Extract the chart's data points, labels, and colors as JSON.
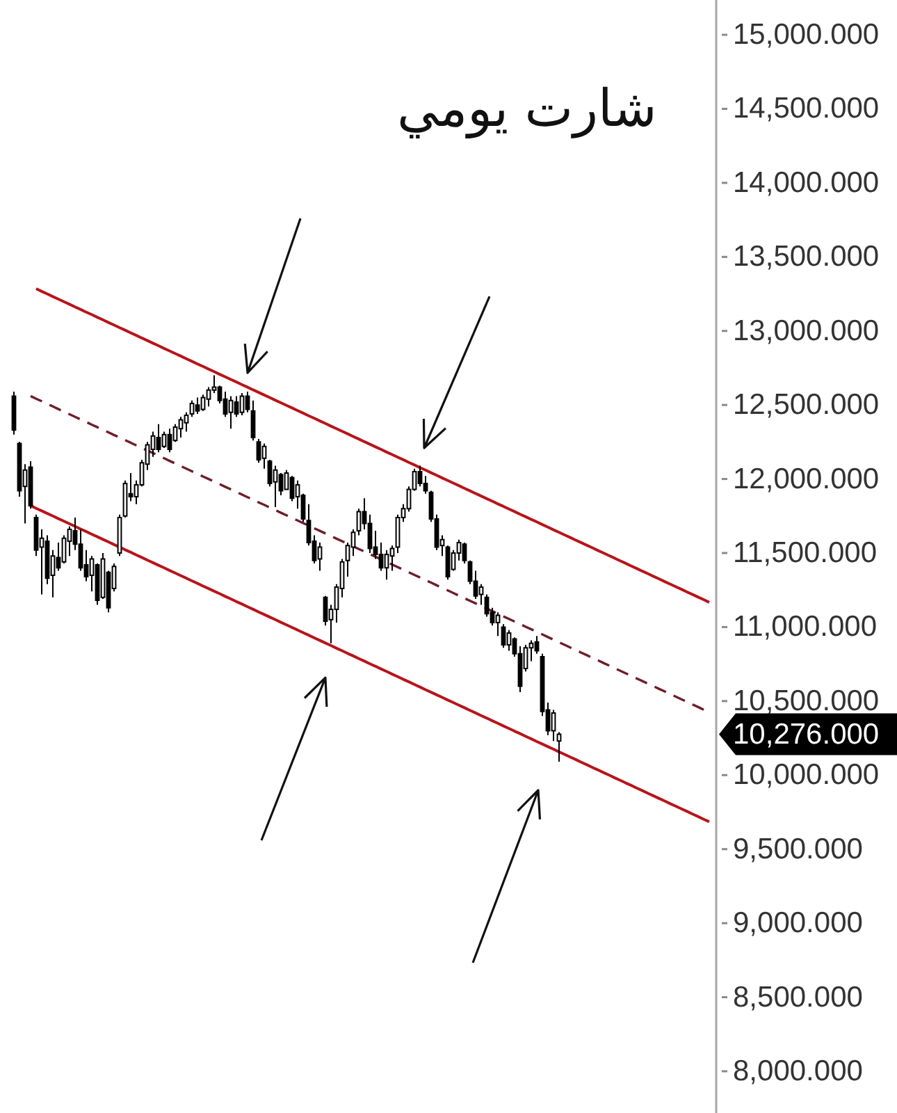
{
  "chart_data": {
    "type": "candlestick",
    "title": "شارت يومي",
    "categories": [
      null,
      null,
      null,
      null,
      null,
      null,
      null,
      null,
      null,
      null,
      null,
      null,
      null,
      null,
      null,
      null,
      null,
      null,
      null,
      null,
      null,
      null,
      null,
      null,
      null,
      null,
      null,
      null,
      null,
      null,
      null,
      null,
      null,
      null,
      null,
      null,
      null,
      null,
      null,
      null,
      null,
      null,
      null,
      null,
      null,
      null,
      null,
      null,
      null,
      null,
      null,
      null,
      null,
      null,
      null,
      null,
      null,
      null,
      null,
      null,
      null,
      null,
      null,
      null,
      null,
      null,
      null,
      null,
      null,
      null,
      null,
      null,
      null,
      null,
      null,
      null,
      null,
      null,
      null,
      null,
      null,
      null,
      null,
      null,
      null,
      null,
      null,
      null,
      null,
      null,
      null,
      null,
      null,
      null,
      null,
      null,
      null,
      null,
      null,
      null,
      null,
      null,
      null,
      null,
      null,
      null,
      null,
      null,
      null,
      null,
      null,
      null,
      null,
      null,
      null,
      null,
      null,
      null,
      null,
      null,
      null,
      null,
      null,
      null,
      null,
      null,
      null,
      null
    ],
    "series": [
      {
        "type": "line",
        "color": "#b8141a",
        "line_style": "solid",
        "values": [
          null,
          null,
          null,
          null,
          null,
          null,
          13285,
          13267,
          13250,
          13232,
          13215,
          13197,
          13180,
          13162,
          13145,
          13127,
          13110,
          13092,
          13075,
          13057,
          13040,
          13022,
          13005,
          12987,
          12970,
          12952,
          12935,
          12917,
          12900,
          12882,
          12865,
          12847,
          12830,
          12812,
          12795,
          12777,
          12760,
          12742,
          12725,
          12707,
          12690,
          12672,
          12655,
          12637,
          12620,
          12602,
          12585,
          12567,
          12550,
          12532,
          12515,
          12497,
          12480,
          12462,
          12445,
          12427,
          12410,
          12392,
          12375,
          12357,
          12340,
          12322,
          12305,
          12287,
          12270,
          12252,
          12235,
          12217,
          12200,
          12182,
          12165,
          12147,
          12130,
          12112,
          12095,
          12077,
          12060,
          12042,
          12025,
          12007,
          11990,
          11972,
          11955,
          11937,
          11920,
          11902,
          11885,
          11867,
          11850,
          11832,
          11815,
          11797,
          11780,
          11762,
          11745,
          11727,
          11710,
          11692,
          11675,
          11657,
          11640,
          11622,
          11605,
          11587,
          11570,
          11552,
          11535,
          11517,
          11500,
          11482,
          11465,
          11447,
          11430,
          11412,
          11395,
          11377,
          11360,
          11342,
          11325,
          11307,
          11290,
          11272,
          11255,
          11237,
          11220,
          11202,
          11185,
          11167
        ]
      },
      {
        "type": "line",
        "color": "#6e1e2a",
        "line_style": "dashed",
        "values": [
          null,
          null,
          null,
          null,
          null,
          12560,
          12542,
          12525,
          12507,
          12490,
          12472,
          12455,
          12437,
          12420,
          12402,
          12385,
          12367,
          12350,
          12332,
          12315,
          12297,
          12280,
          12262,
          12245,
          12227,
          12210,
          12192,
          12175,
          12157,
          12140,
          12122,
          12105,
          12087,
          12070,
          12052,
          12035,
          12017,
          12000,
          11982,
          11965,
          11947,
          11930,
          11912,
          11895,
          11877,
          11860,
          11842,
          11825,
          11807,
          11790,
          11772,
          11755,
          11737,
          11720,
          11702,
          11685,
          11667,
          11650,
          11632,
          11615,
          11597,
          11580,
          11562,
          11545,
          11527,
          11510,
          11492,
          11475,
          11457,
          11440,
          11422,
          11405,
          11387,
          11370,
          11352,
          11335,
          11317,
          11300,
          11282,
          11265,
          11247,
          11230,
          11212,
          11195,
          11177,
          11160,
          11142,
          11125,
          11107,
          11090,
          11072,
          11055,
          11037,
          11020,
          11002,
          10985,
          10967,
          10950,
          10932,
          10915,
          10897,
          10880,
          10862,
          10845,
          10827,
          10810,
          10792,
          10775,
          10757,
          10740,
          10722,
          10705,
          10687,
          10670,
          10652,
          10635,
          10617,
          10600,
          10582,
          10565,
          10547,
          10530,
          10512,
          10495,
          10477,
          10460,
          10442,
          10425
        ]
      },
      {
        "type": "line",
        "color": "#b8141a",
        "line_style": "solid",
        "values": [
          null,
          null,
          null,
          null,
          null,
          11820,
          11802,
          11785,
          11767,
          11750,
          11732,
          11715,
          11697,
          11680,
          11662,
          11645,
          11627,
          11610,
          11592,
          11575,
          11557,
          11540,
          11522,
          11505,
          11487,
          11470,
          11452,
          11435,
          11417,
          11400,
          11382,
          11365,
          11347,
          11330,
          11312,
          11295,
          11277,
          11260,
          11242,
          11225,
          11207,
          11190,
          11172,
          11155,
          11137,
          11120,
          11102,
          11085,
          11067,
          11050,
          11032,
          11015,
          10997,
          10980,
          10962,
          10945,
          10927,
          10910,
          10892,
          10875,
          10857,
          10840,
          10822,
          10805,
          10787,
          10770,
          10752,
          10735,
          10717,
          10700,
          10682,
          10665,
          10647,
          10630,
          10612,
          10595,
          10577,
          10560,
          10542,
          10525,
          10507,
          10490,
          10472,
          10455,
          10437,
          10420,
          10402,
          10385,
          10367,
          10350,
          10332,
          10315,
          10297,
          10280,
          10262,
          10245,
          10227,
          10210,
          10192,
          10175,
          10157,
          10140,
          10122,
          10105,
          10087,
          10070,
          10052,
          10035,
          10017,
          10000,
          9982,
          9965,
          9947,
          9930,
          9912,
          9895,
          9877,
          9860,
          9842,
          9825,
          9807,
          9790,
          9772,
          9755,
          9737,
          9720,
          9702,
          9685
        ]
      },
      {
        "color": "#000000",
        "ohlc": [
          null,
          null,
          [
            12560,
            12590,
            12300,
            12330
          ],
          [
            12240,
            12250,
            11880,
            11920
          ],
          [
            11950,
            12100,
            11700,
            12060
          ],
          [
            12080,
            12120,
            11800,
            11820
          ],
          [
            11740,
            11760,
            11480,
            11520
          ],
          [
            11540,
            11660,
            11220,
            11600
          ],
          [
            11580,
            11620,
            11290,
            11330
          ],
          [
            11350,
            11520,
            11200,
            11480
          ],
          [
            11470,
            11570,
            11380,
            11400
          ],
          [
            11440,
            11620,
            11430,
            11600
          ],
          [
            11580,
            11680,
            11480,
            11660
          ],
          [
            11650,
            11740,
            11520,
            11560
          ],
          [
            11560,
            11660,
            11380,
            11400
          ],
          [
            11420,
            11520,
            11310,
            11340
          ],
          [
            11350,
            11480,
            11240,
            11460
          ],
          [
            11420,
            11430,
            11150,
            11180
          ],
          [
            11200,
            11500,
            11190,
            11460
          ],
          [
            11370,
            11380,
            11100,
            11130
          ],
          [
            11260,
            11430,
            11240,
            11410
          ],
          [
            11500,
            11760,
            11480,
            11740
          ],
          [
            11750,
            11990,
            11740,
            11970
          ],
          [
            11900,
            12040,
            11850,
            11880
          ],
          [
            11880,
            11990,
            11830,
            11960
          ],
          [
            11960,
            12130,
            11950,
            12110
          ],
          [
            12100,
            12250,
            12060,
            12230
          ],
          [
            12200,
            12320,
            12150,
            12290
          ],
          [
            12280,
            12370,
            12180,
            12200
          ],
          [
            12220,
            12320,
            12210,
            12300
          ],
          [
            12300,
            12340,
            12180,
            12200
          ],
          [
            12260,
            12370,
            12250,
            12350
          ],
          [
            12340,
            12420,
            12280,
            12400
          ],
          [
            12380,
            12450,
            12320,
            12430
          ],
          [
            12440,
            12530,
            12420,
            12510
          ],
          [
            12500,
            12550,
            12440,
            12460
          ],
          [
            12470,
            12570,
            12460,
            12550
          ],
          [
            12540,
            12620,
            12490,
            12600
          ],
          [
            12600,
            12700,
            12580,
            12620
          ],
          [
            12620,
            12630,
            12510,
            12530
          ],
          [
            12540,
            12590,
            12420,
            12440
          ],
          [
            12450,
            12560,
            12340,
            12530
          ],
          [
            12520,
            12560,
            12420,
            12440
          ],
          [
            12450,
            12580,
            12430,
            12560
          ],
          [
            12560,
            12590,
            12450,
            12470
          ],
          [
            12460,
            12530,
            12260,
            12280
          ],
          [
            12250,
            12270,
            12110,
            12130
          ],
          [
            12140,
            12240,
            12070,
            12220
          ],
          [
            12120,
            12130,
            11950,
            11970
          ],
          [
            11980,
            12090,
            11810,
            12060
          ],
          [
            12030,
            12040,
            11890,
            11920
          ],
          [
            11930,
            12060,
            11930,
            12040
          ],
          [
            12010,
            12020,
            11850,
            11870
          ],
          [
            11880,
            11990,
            11800,
            11960
          ],
          [
            11890,
            11900,
            11710,
            11730
          ],
          [
            11720,
            11830,
            11550,
            11570
          ],
          [
            11580,
            11620,
            11430,
            11450
          ],
          [
            11460,
            11570,
            11380,
            11540
          ],
          [
            11200,
            11210,
            11010,
            11040
          ],
          [
            11050,
            11150,
            10890,
            11120
          ],
          [
            11120,
            11290,
            11030,
            11270
          ],
          [
            11260,
            11460,
            11200,
            11440
          ],
          [
            11450,
            11570,
            11340,
            11550
          ],
          [
            11540,
            11660,
            11480,
            11640
          ],
          [
            11650,
            11800,
            11620,
            11780
          ],
          [
            11780,
            11870,
            11660,
            11700
          ],
          [
            11700,
            11760,
            11500,
            11530
          ],
          [
            11540,
            11650,
            11460,
            11490
          ],
          [
            11490,
            11570,
            11380,
            11400
          ],
          [
            11400,
            11520,
            11320,
            11490
          ],
          [
            11480,
            11550,
            11380,
            11530
          ],
          [
            11540,
            11760,
            11500,
            11740
          ],
          [
            11740,
            11830,
            11710,
            11800
          ],
          [
            11800,
            11950,
            11780,
            11930
          ],
          [
            11930,
            12070,
            11920,
            12050
          ],
          [
            12050,
            12090,
            11950,
            11970
          ],
          [
            11970,
            12020,
            11900,
            11920
          ],
          [
            11910,
            11920,
            11710,
            11730
          ],
          [
            11730,
            11760,
            11520,
            11540
          ],
          [
            11550,
            11620,
            11480,
            11590
          ],
          [
            11540,
            11550,
            11320,
            11340
          ],
          [
            11390,
            11520,
            11380,
            11500
          ],
          [
            11500,
            11590,
            11450,
            11570
          ],
          [
            11560,
            11570,
            11430,
            11450
          ],
          [
            11440,
            11450,
            11290,
            11310
          ],
          [
            11310,
            11380,
            11190,
            11210
          ],
          [
            11220,
            11290,
            11150,
            11270
          ],
          [
            11200,
            11220,
            11070,
            11090
          ],
          [
            11100,
            11130,
            11010,
            11030
          ],
          [
            11030,
            11100,
            10940,
            11080
          ],
          [
            11000,
            11020,
            10860,
            10880
          ],
          [
            10880,
            10980,
            10840,
            10960
          ],
          [
            10920,
            10930,
            10800,
            10820
          ],
          [
            10820,
            10870,
            10560,
            10600
          ],
          [
            10720,
            10880,
            10700,
            10860
          ],
          [
            10860,
            10910,
            10770,
            10890
          ],
          [
            10900,
            10940,
            10820,
            10840
          ],
          [
            10800,
            10820,
            10400,
            10430
          ],
          [
            10440,
            10490,
            10270,
            10300
          ],
          [
            10300,
            10440,
            10230,
            10420
          ],
          [
            10230,
            10290,
            10090,
            10276
          ],
          null,
          null,
          null,
          null,
          null,
          null,
          null,
          null,
          null,
          null,
          null,
          null,
          null,
          null,
          null,
          null,
          null,
          null,
          null,
          null,
          null,
          null,
          null,
          null,
          null,
          null,
          null
        ]
      }
    ],
    "ylim": [
      7718,
      15235
    ],
    "yticks": [
      {
        "value": 8000,
        "label": "8,000.000"
      },
      {
        "value": 8500,
        "label": "8,500.000"
      },
      {
        "value": 9000,
        "label": "9,000.000"
      },
      {
        "value": 9500,
        "label": "9,500.000"
      },
      {
        "value": 10000,
        "label": "10,000.000"
      },
      {
        "value": 10500,
        "label": "10,500.000"
      },
      {
        "value": 11000,
        "label": "11,000.000"
      },
      {
        "value": 11500,
        "label": "11,500.000"
      },
      {
        "value": 12000,
        "label": "12,000.000"
      },
      {
        "value": 12500,
        "label": "12,500.000"
      },
      {
        "value": 13000,
        "label": "13,000.000"
      },
      {
        "value": 13500,
        "label": "13,500.000"
      },
      {
        "value": 14000,
        "label": "14,000.000"
      },
      {
        "value": 14500,
        "label": "14,500.000"
      },
      {
        "value": 15000,
        "label": "15,000.000"
      }
    ],
    "annotations": [
      "10,276.000"
    ]
  }
}
